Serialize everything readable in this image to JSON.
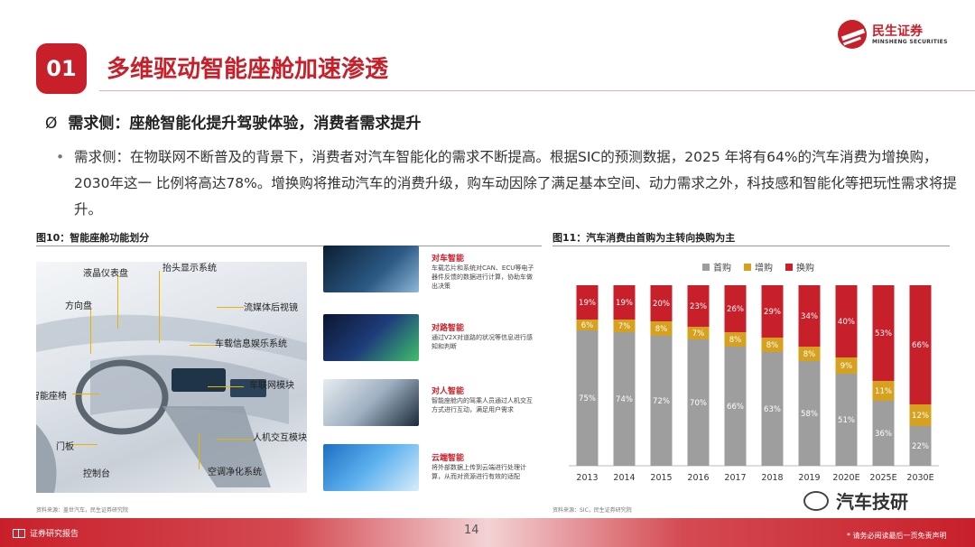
{
  "header": {
    "number": "01",
    "title": "多维驱动智能座舱加速渗透",
    "logo_cn": "民生证券",
    "logo_en": "MINSHENG SECURITIES"
  },
  "heading": {
    "mark": "Ø",
    "text": "需求侧：座舱智能化提升驾驶体验，消费者需求提升"
  },
  "paragraph": {
    "bullet": "•",
    "text": "需求侧：在物联网不断普及的背景下，消费者对汽车智能化的需求不断提高。根据SIC的预测数据，2025 年将有64%的汽车消费为增换购，2030年这一 比例将高达78%。增换购将推动汽车的消费升级，购车动因除了满足基本空间、动力需求之外，科技感和智能化等把玩性需求将提升。"
  },
  "figure10": {
    "caption": "图10：智能座舱功能划分",
    "source": "资料来源：盖世汽车，民生证券研究院",
    "labels": {
      "instrument": "液晶仪表盘",
      "hud": "抬头显示系统",
      "wheel": "方向盘",
      "mirror": "流媒体后视镜",
      "infotainment": "车载信息娱乐系统",
      "telematics": "车联网模块",
      "seat": "智能座椅",
      "hmi": "人机交互模块",
      "door": "门板",
      "console": "控制台",
      "air": "空调净化系统"
    },
    "functions": [
      {
        "title": "对车智能",
        "desc": "车载芯片和系统对CAN、ECU等电子器件反馈的数据进行计算，协助车做出决策"
      },
      {
        "title": "对路智能",
        "desc": "通过V2X对道路的状况等信息进行感知和判断"
      },
      {
        "title": "对人智能",
        "desc": "智能座舱内的驾乘人员通过人机交互方式进行互动，满足用户需求"
      },
      {
        "title": "云端智能",
        "desc": "将外部数据上传到云端进行处理计算，从而对资源进行有效的适配"
      }
    ]
  },
  "figure11": {
    "caption": "图11：汽车消费由首购为主转向换购为主",
    "source": "资料来源：SIC，民生证券研究院"
  },
  "chart_data": {
    "type": "bar",
    "stacked": true,
    "categories": [
      "2013",
      "2014",
      "2015",
      "2016",
      "2017",
      "2018",
      "2019",
      "2020E",
      "2025E",
      "2030E"
    ],
    "series": [
      {
        "name": "首购",
        "color": "#9e9e9e",
        "values": [
          75,
          74,
          72,
          70,
          66,
          63,
          58,
          51,
          36,
          22
        ]
      },
      {
        "name": "增购",
        "color": "#d6a11e",
        "values": [
          6,
          7,
          8,
          7,
          8,
          8,
          8,
          9,
          11,
          12
        ]
      },
      {
        "name": "换购",
        "color": "#c8202a",
        "values": [
          19,
          19,
          20,
          23,
          26,
          29,
          34,
          40,
          53,
          66
        ]
      }
    ],
    "labels": [
      [
        "75%",
        "74%",
        "72%",
        "70%",
        "66%",
        "63%",
        "58%",
        "51%",
        "36%",
        "22%"
      ],
      [
        "6%",
        "7%",
        "8%",
        "7%",
        "8%",
        "8%",
        "8%",
        "9%",
        "11%",
        "12%"
      ],
      [
        "19%",
        "19%",
        "20%",
        "23%",
        "26%",
        "29%",
        "34%",
        "40%",
        "53%",
        "66%"
      ]
    ],
    "ylim": [
      0,
      100
    ],
    "legend_position": "top"
  },
  "footer": {
    "left": "证券研究报告",
    "page": "14",
    "disclaimer": "* 请务必阅读最后一页免责声明",
    "watermark": "汽车技研"
  }
}
